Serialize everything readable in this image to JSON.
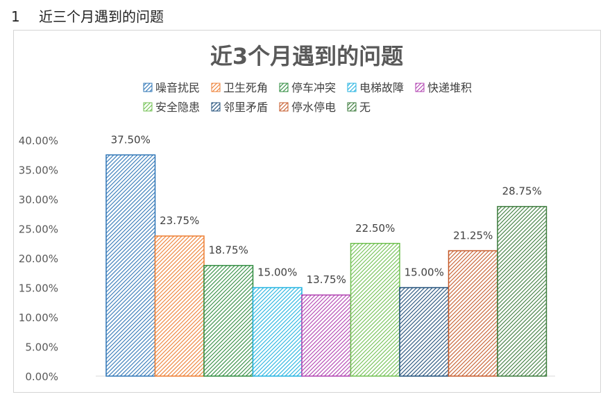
{
  "heading": {
    "number": "1",
    "text": "近三个月遇到的问题"
  },
  "chart_data": {
    "type": "bar",
    "title": "近3个月遇到的问题",
    "xlabel": "",
    "ylabel": "",
    "ylim": [
      0,
      40
    ],
    "y_ticks": [
      "0.00%",
      "5.00%",
      "10.00%",
      "15.00%",
      "20.00%",
      "25.00%",
      "30.00%",
      "35.00%",
      "40.00%"
    ],
    "grid": false,
    "legend_position": "top",
    "series": [
      {
        "name": "噪音扰民",
        "value": 37.5,
        "label": "37.50%",
        "color": "#2e75b6"
      },
      {
        "name": "卫生死角",
        "value": 23.75,
        "label": "23.75%",
        "color": "#ed7d31"
      },
      {
        "name": "停车冲突",
        "value": 18.75,
        "label": "18.75%",
        "color": "#2e8b3e"
      },
      {
        "name": "电梯故障",
        "value": 15.0,
        "label": "15.00%",
        "color": "#21b2e0"
      },
      {
        "name": "快递堆积",
        "value": 13.75,
        "label": "13.75%",
        "color": "#b040b0"
      },
      {
        "name": "安全隐患",
        "value": 22.5,
        "label": "22.50%",
        "color": "#70c050"
      },
      {
        "name": "邻里矛盾",
        "value": 15.0,
        "label": "15.00%",
        "color": "#1f4e79"
      },
      {
        "name": "停水停电",
        "value": 21.25,
        "label": "21.25%",
        "color": "#c55a2a"
      },
      {
        "name": "无",
        "value": 28.75,
        "label": "28.75%",
        "color": "#3a7a3a"
      }
    ]
  }
}
